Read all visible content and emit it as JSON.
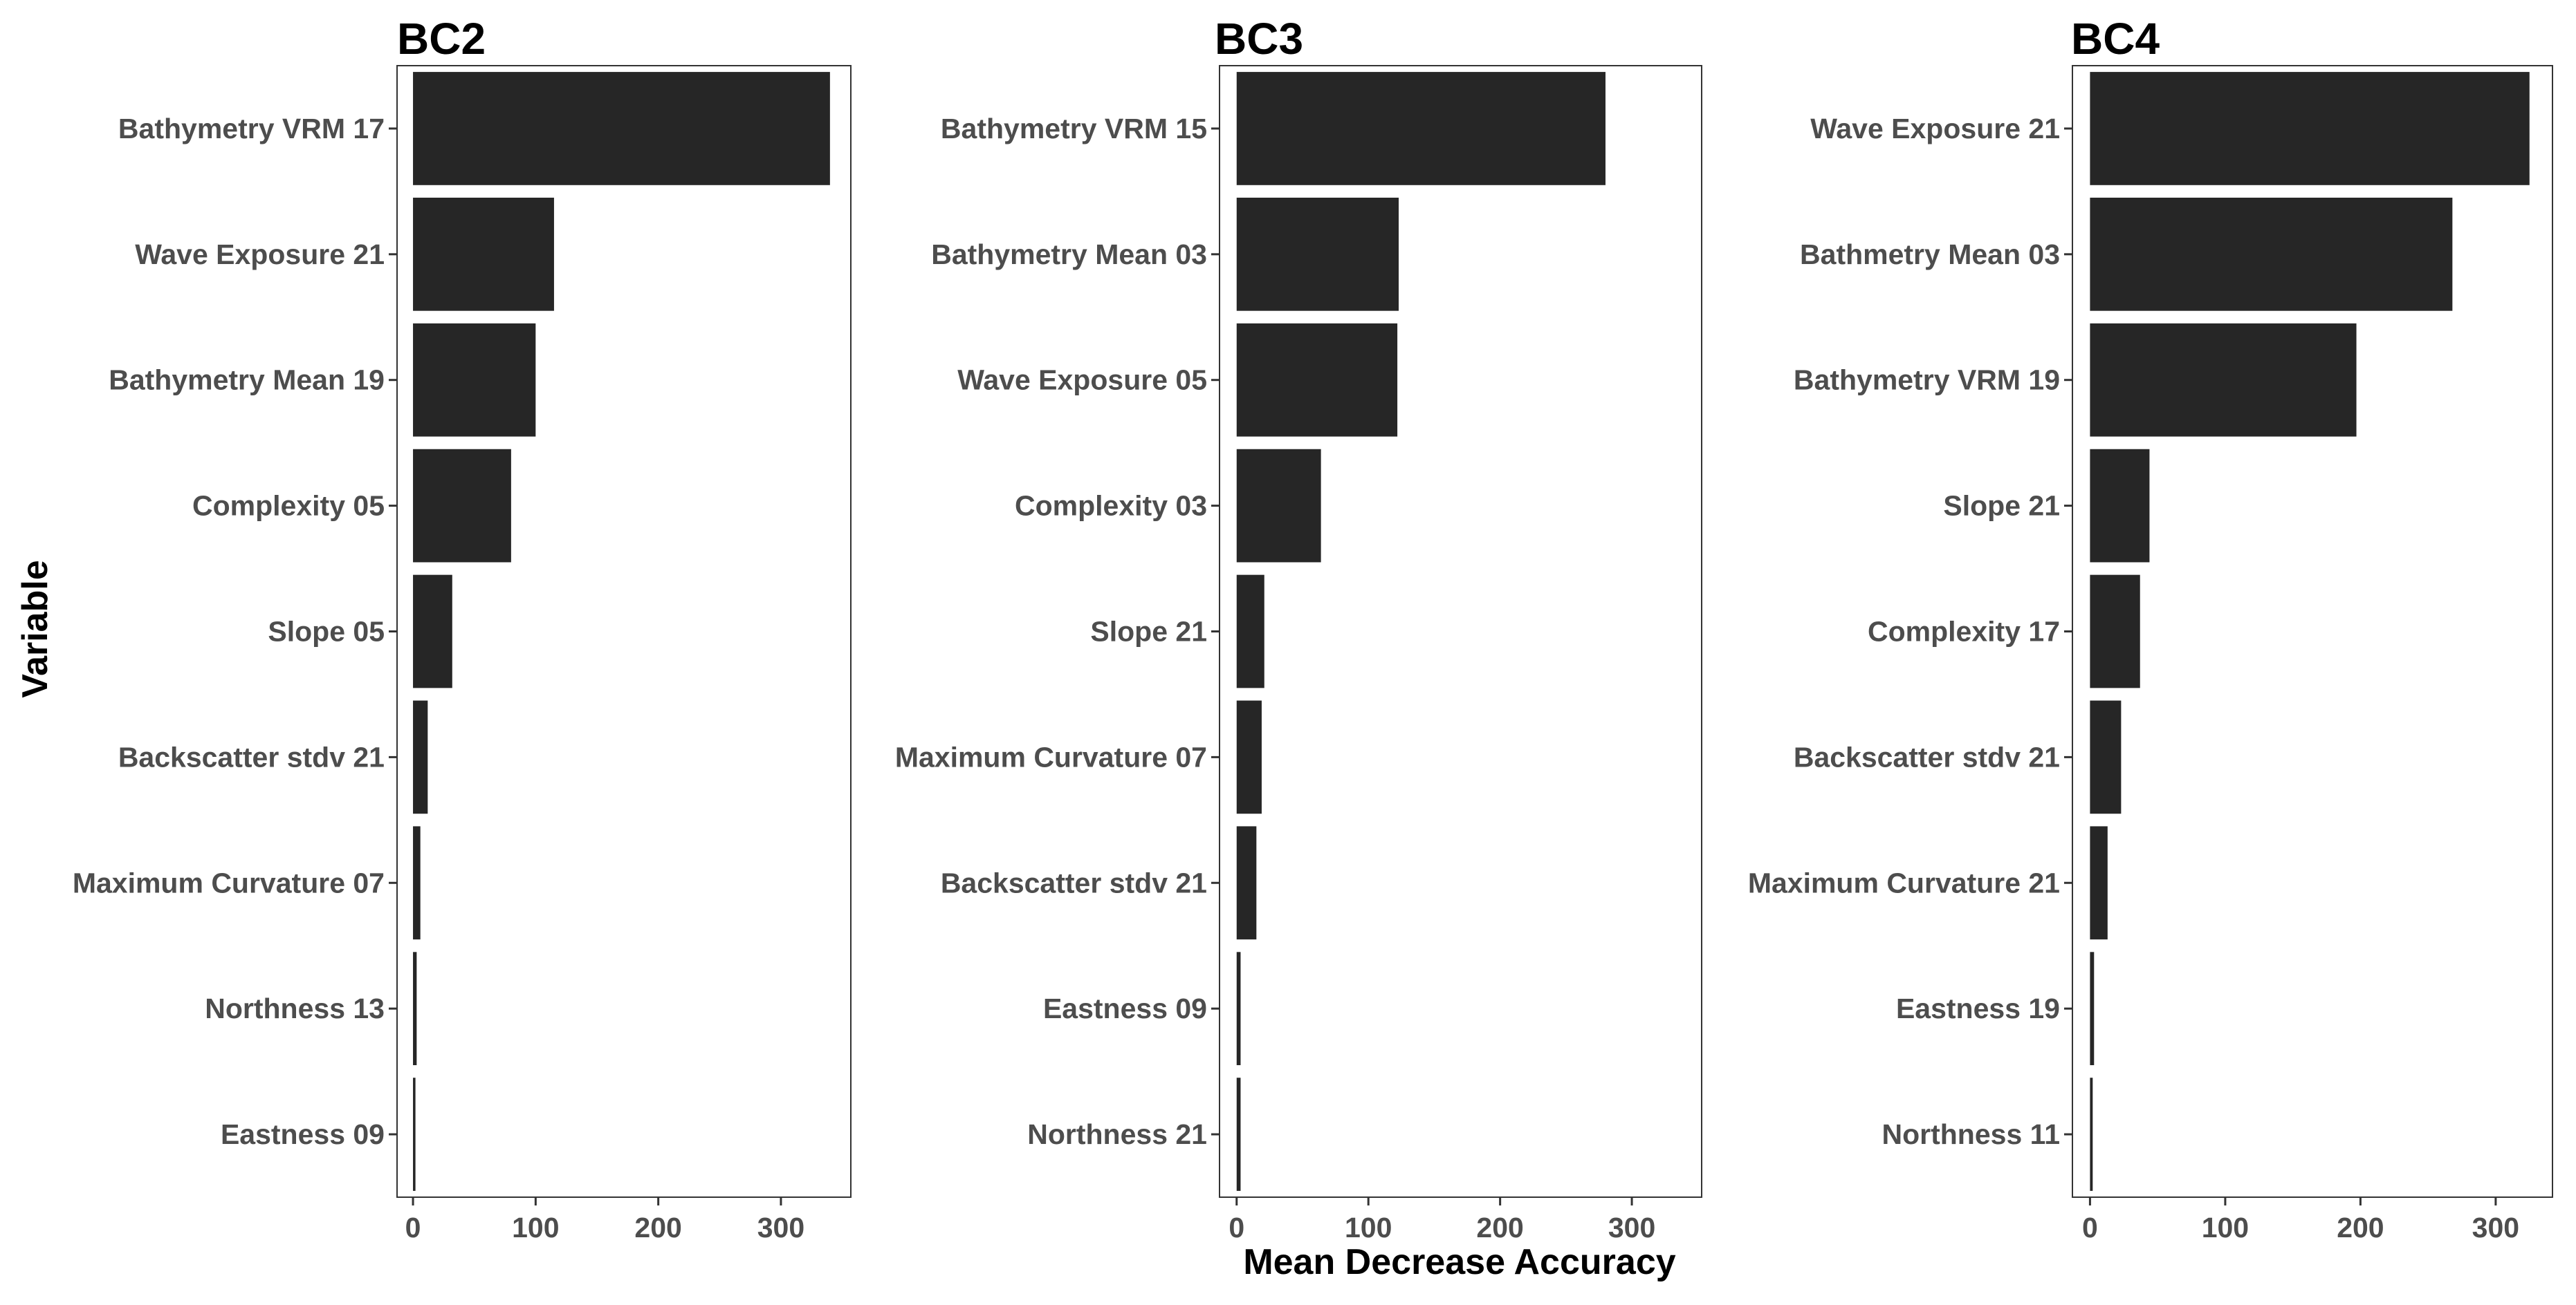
{
  "figure": {
    "ylabel": "Variable",
    "xlabel": "Mean Decrease Accuracy"
  },
  "chart_data": [
    {
      "type": "bar",
      "orientation": "horizontal",
      "title": "BC2",
      "categories": [
        "Bathymetry VRM 17",
        "Wave Exposure 21",
        "Bathymetry Mean 19",
        "Complexity 05",
        "Slope 05",
        "Backscatter stdv 21",
        "Maximum Curvature 07",
        "Northness 13",
        "Eastness 09"
      ],
      "values": [
        340,
        115,
        100,
        80,
        32,
        12,
        6,
        3,
        2
      ],
      "xlim": [
        -13,
        357
      ],
      "xticks": [
        0,
        100,
        200,
        300
      ],
      "bar_color": "#262626",
      "grid": false
    },
    {
      "type": "bar",
      "orientation": "horizontal",
      "title": "BC3",
      "categories": [
        "Bathymetry VRM 15",
        "Bathymetry Mean 03",
        "Wave Exposure 05",
        "Complexity 03",
        "Slope 21",
        "Maximum Curvature 07",
        "Backscatter stdv 21",
        "Eastness 09",
        "Northness 21"
      ],
      "values": [
        280,
        123,
        122,
        64,
        21,
        19,
        15,
        3,
        3
      ],
      "xlim": [
        -13,
        353
      ],
      "xticks": [
        0,
        100,
        200,
        300
      ],
      "bar_color": "#262626",
      "grid": false
    },
    {
      "type": "bar",
      "orientation": "horizontal",
      "title": "BC4",
      "categories": [
        "Wave Exposure 21",
        "Bathmetry Mean 03",
        "Bathymetry VRM 19",
        "Slope 21",
        "Complexity 17",
        "Backscatter stdv 21",
        "Maximum Curvature 21",
        "Eastness 19",
        "Northness 11"
      ],
      "values": [
        325,
        268,
        197,
        44,
        37,
        23,
        13,
        3,
        2
      ],
      "xlim": [
        -13,
        342
      ],
      "xticks": [
        0,
        100,
        200,
        300
      ],
      "bar_color": "#262626",
      "grid": false
    }
  ]
}
